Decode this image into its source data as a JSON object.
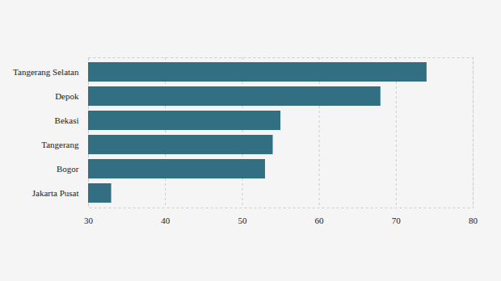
{
  "chart_data": {
    "type": "bar",
    "orientation": "horizontal",
    "categories": [
      "Tangerang Selatan",
      "Depok",
      "Bekasi",
      "Tangerang",
      "Bogor",
      "Jakarta Pusat"
    ],
    "values": [
      74,
      68,
      55,
      54,
      53,
      33
    ],
    "color": "#336f82",
    "xlim": [
      30,
      80
    ],
    "xticks": [
      30,
      40,
      50,
      60,
      70,
      80
    ],
    "grid": true
  }
}
